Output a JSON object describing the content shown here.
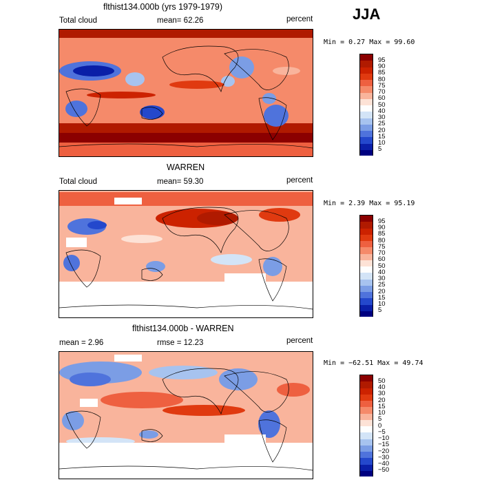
{
  "season": "JJA",
  "panels": [
    {
      "title": "flthist134.000b (yrs 1979-1979)",
      "left_label": "Total cloud",
      "center_label": "mean=  62.26",
      "right_label": "percent",
      "minmax": "Min =   0.27 Max =  99.60",
      "colorbar_labels": [
        "95",
        "90",
        "85",
        "80",
        "75",
        "70",
        "60",
        "50",
        "40",
        "30",
        "25",
        "20",
        "15",
        "10",
        "5"
      ]
    },
    {
      "title": "WARREN",
      "left_label": "Total cloud",
      "center_label": "mean=  59.30",
      "right_label": "percent",
      "minmax": "Min =   2.39 Max =  95.19",
      "colorbar_labels": [
        "95",
        "90",
        "85",
        "80",
        "75",
        "70",
        "60",
        "50",
        "40",
        "30",
        "25",
        "20",
        "15",
        "10",
        "5"
      ]
    },
    {
      "title": "flthist134.000b - WARREN",
      "left_label": "mean =   2.96",
      "center_label": "rmse =  12.23",
      "right_label": "percent",
      "minmax": "Min = −62.51 Max =  49.74",
      "colorbar_labels": [
        "50",
        "40",
        "30",
        "20",
        "15",
        "10",
        "5",
        "0",
        "−5",
        "−10",
        "−15",
        "−20",
        "−30",
        "−40",
        "−50"
      ]
    }
  ],
  "colors": {
    "scale": [
      "#8b0000",
      "#b01a00",
      "#cc2200",
      "#e03a10",
      "#ee6040",
      "#f58a6a",
      "#f9b49c",
      "#fde2d6",
      "#fefefe",
      "#d3e4f7",
      "#a7c3ef",
      "#7b9de5",
      "#4f73dc",
      "#2448cc",
      "#0a1fa8",
      "#000080"
    ]
  }
}
